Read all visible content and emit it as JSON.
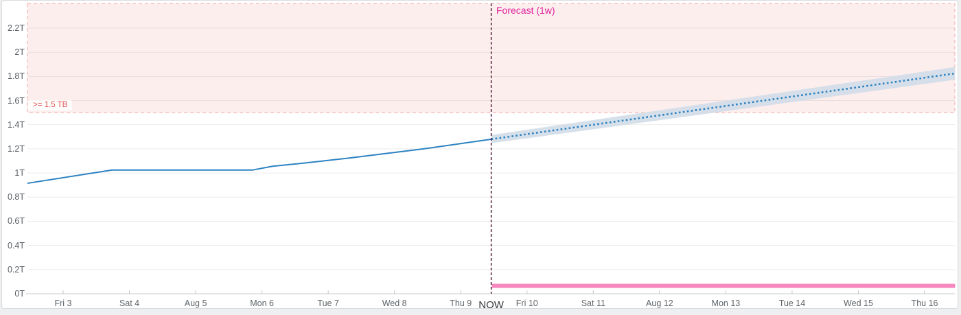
{
  "colors": {
    "page_bg": "#edeff1",
    "card_bg": "#ffffff",
    "card_border": "#d8dbdd",
    "history_line": "#2c82c2",
    "forecast_line": "#2c82c2",
    "confidence_band": "#d2dde8",
    "threshold_zone_fill": "rgba(238,92,92,0.105)",
    "threshold_zone_border": "#f2a6a6",
    "threshold_text": "#e25757",
    "now_line": "#5c2b45",
    "now_text": "#35383b",
    "forecast_label_text": "#e0209b",
    "alert_bar": "#f687bf",
    "gridline": "#ececec",
    "axis_line": "#c8c8c8",
    "axis_text": "#5f6468"
  },
  "labels": {
    "forecast_title": "Forecast (1w)",
    "now": "NOW",
    "threshold": ">= 1.5 TB"
  },
  "chart_data": {
    "type": "line",
    "title": "Forecast (1w)",
    "unit": "TB",
    "grid": true,
    "legend_position": "none",
    "y_axis": {
      "range": [
        0,
        2.405
      ],
      "ticks": [
        {
          "label": "0T",
          "value": 0
        },
        {
          "label": "0.2T",
          "value": 0.2
        },
        {
          "label": "0.4T",
          "value": 0.4
        },
        {
          "label": "0.6T",
          "value": 0.6
        },
        {
          "label": "0.8T",
          "value": 0.8
        },
        {
          "label": "1T",
          "value": 1
        },
        {
          "label": "1.2T",
          "value": 1.2
        },
        {
          "label": "1.4T",
          "value": 1.4
        },
        {
          "label": "1.6T",
          "value": 1.6
        },
        {
          "label": "1.8T",
          "value": 1.8
        },
        {
          "label": "2T",
          "value": 2
        },
        {
          "label": "2.2T",
          "value": 2.2
        }
      ]
    },
    "x_axis": {
      "range_days": [
        -0.54,
        13.46
      ],
      "ticks": [
        {
          "label": "Fri 3",
          "day": 0
        },
        {
          "label": "Sat 4",
          "day": 1
        },
        {
          "label": "Aug 5",
          "day": 2
        },
        {
          "label": "Mon 6",
          "day": 3
        },
        {
          "label": "Tue 7",
          "day": 4
        },
        {
          "label": "Wed 8",
          "day": 5
        },
        {
          "label": "Thu 9",
          "day": 6
        },
        {
          "label": "Fri 10",
          "day": 7
        },
        {
          "label": "Sat 11",
          "day": 8
        },
        {
          "label": "Aug 12",
          "day": 9
        },
        {
          "label": "Mon 13",
          "day": 10
        },
        {
          "label": "Tue 14",
          "day": 11
        },
        {
          "label": "Wed 15",
          "day": 12
        },
        {
          "label": "Thu 16",
          "day": 13
        }
      ]
    },
    "now_marker": {
      "label": "NOW",
      "day": 6.46
    },
    "threshold": {
      "label": ">= 1.5 TB",
      "value": 1.5,
      "shade_above": true
    },
    "series": [
      {
        "name": "history",
        "style": "solid",
        "points": [
          [
            -0.539,
            0.915
          ],
          [
            0.74,
            1.025
          ],
          [
            2.86,
            1.025
          ],
          [
            3.16,
            1.056
          ],
          [
            3.6,
            1.08
          ],
          [
            4.33,
            1.125
          ],
          [
            5.44,
            1.2
          ],
          [
            6.46,
            1.28
          ]
        ]
      },
      {
        "name": "forecast",
        "style": "dotted",
        "points": [
          [
            6.46,
            1.28
          ],
          [
            13.46,
            1.825
          ]
        ]
      },
      {
        "name": "forecast_confidence_band",
        "style": "band",
        "upper": [
          [
            6.46,
            1.315
          ],
          [
            13.46,
            1.878
          ]
        ],
        "lower": [
          [
            6.46,
            1.247
          ],
          [
            13.46,
            1.772
          ]
        ]
      },
      {
        "name": "forecast_alert_bar",
        "style": "bar",
        "points": [
          [
            6.46,
            0.065
          ],
          [
            13.46,
            0.065
          ]
        ]
      }
    ]
  }
}
